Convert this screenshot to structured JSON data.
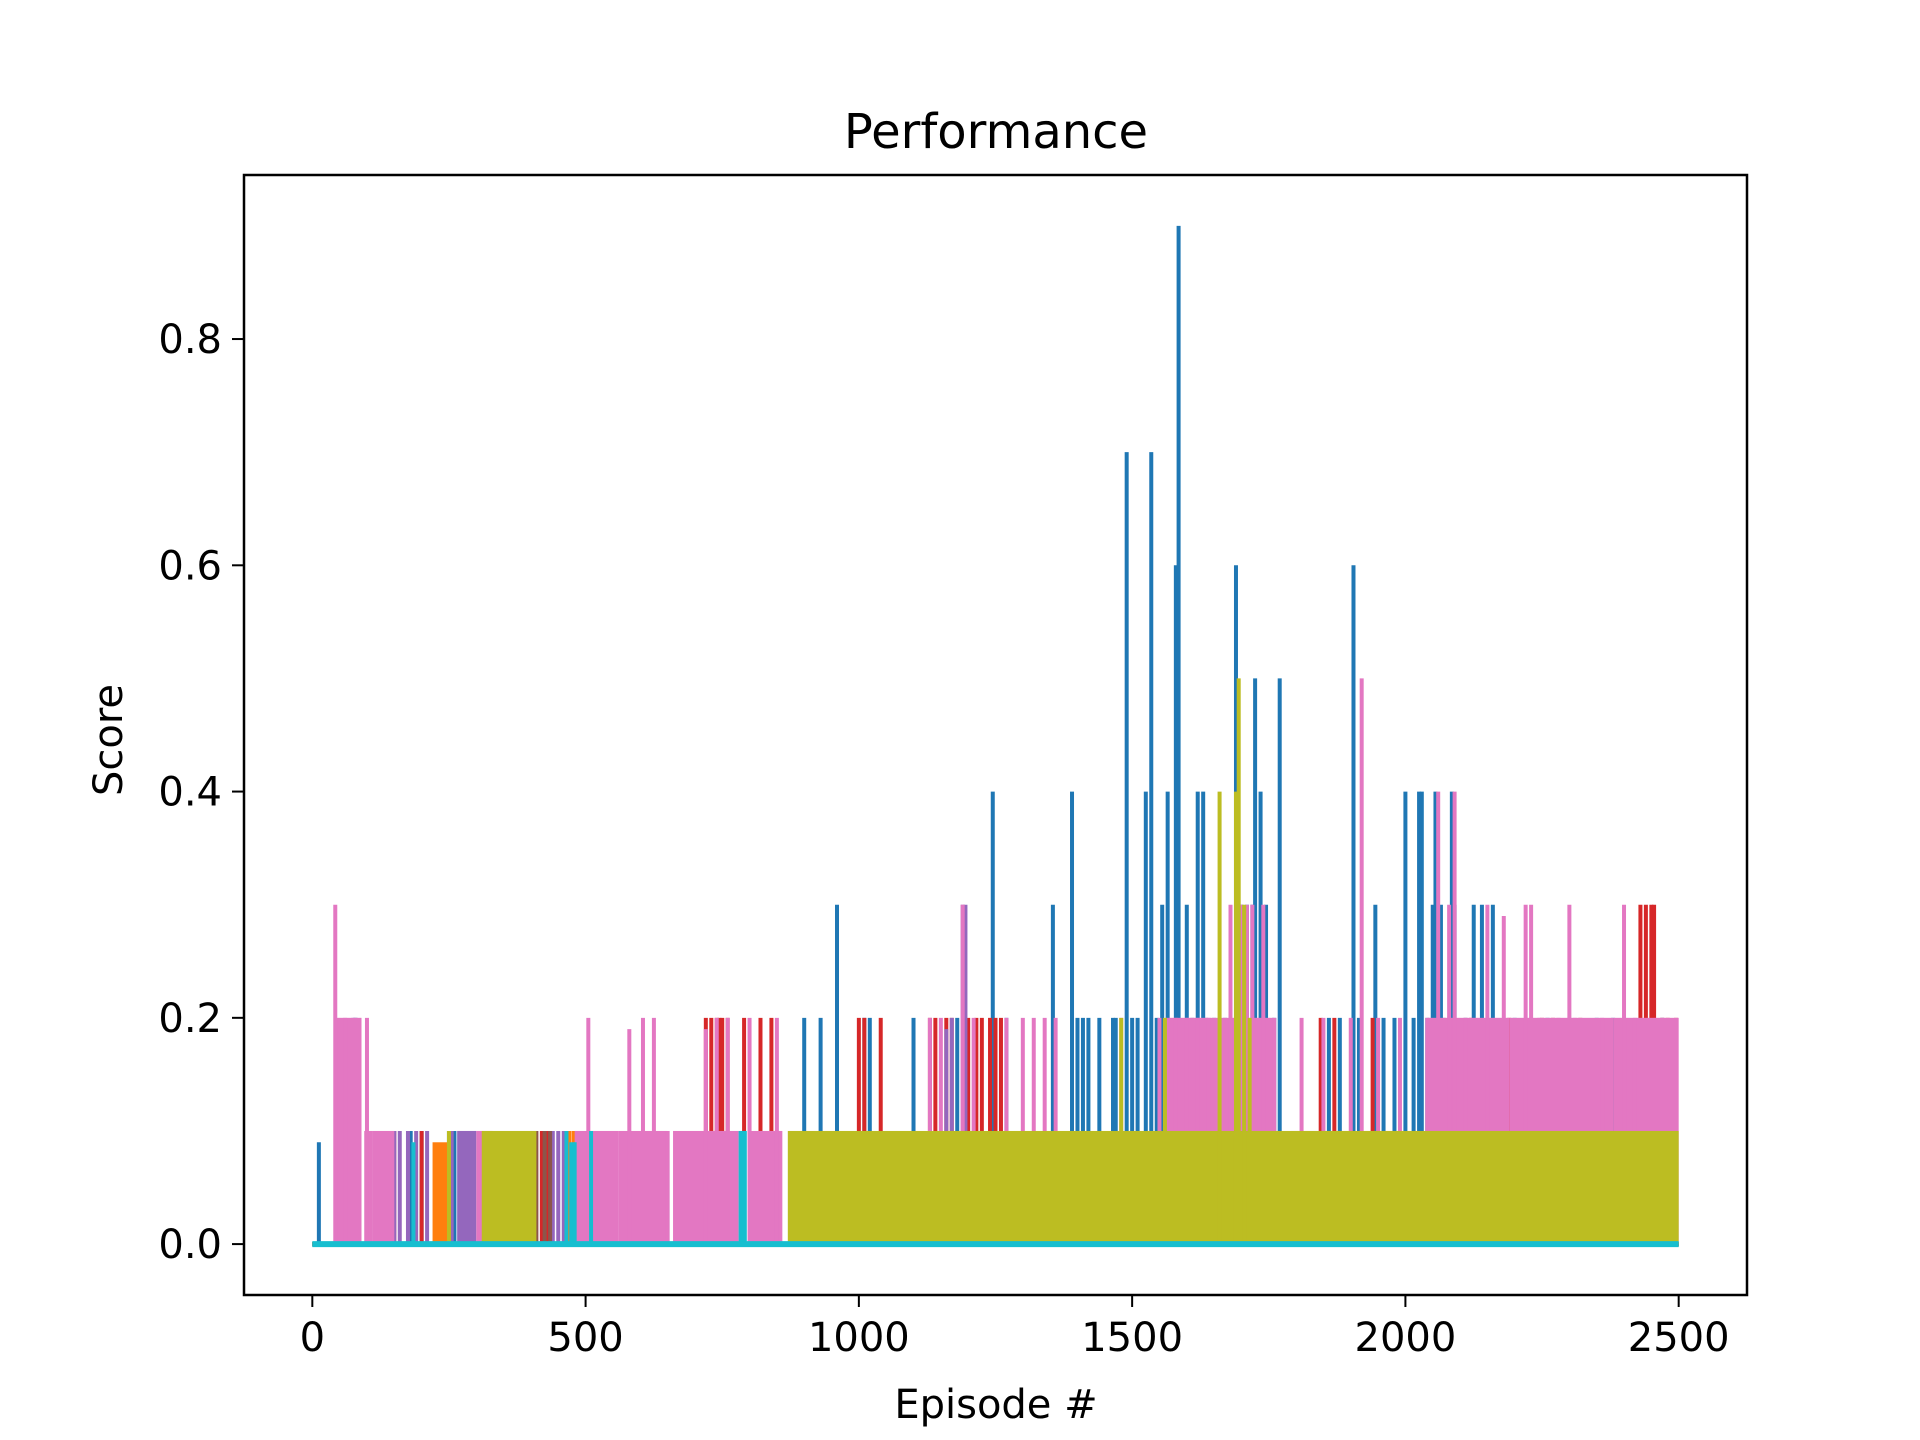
{
  "chart_data": {
    "type": "line",
    "title": "Performance",
    "xlabel": "Episode #",
    "ylabel": "Score",
    "xlim": [
      -125,
      2625
    ],
    "ylim": [
      -0.045,
      0.945
    ],
    "xticks": [
      0,
      500,
      1000,
      1500,
      2000,
      2500
    ],
    "xtick_labels": [
      "0",
      "500",
      "1000",
      "1500",
      "2000",
      "2500"
    ],
    "yticks": [
      0.0,
      0.2,
      0.4,
      0.6,
      0.8
    ],
    "ytick_labels": [
      "0.0",
      "0.2",
      "0.4",
      "0.6",
      "0.8"
    ],
    "grid": false,
    "legend": "none",
    "episodes": 2500,
    "series": [
      {
        "color": "#1f77b4",
        "baseline": 0.0,
        "bands": [],
        "spikes": [
          [
            12,
            0.09
          ],
          [
            60,
            0.1
          ],
          [
            72,
            0.1
          ],
          [
            75,
            0.1
          ],
          [
            78,
            0.2
          ],
          [
            180,
            0.1
          ],
          [
            200,
            0.1
          ],
          [
            250,
            0.1
          ],
          [
            260,
            0.1
          ],
          [
            285,
            0.1
          ],
          [
            900,
            0.2
          ],
          [
            960,
            0.3
          ],
          [
            930,
            0.2
          ],
          [
            1010,
            0.2
          ],
          [
            1020,
            0.2
          ],
          [
            1100,
            0.2
          ],
          [
            1180,
            0.2
          ],
          [
            1245,
            0.4
          ],
          [
            1270,
            0.2
          ],
          [
            1355,
            0.3
          ],
          [
            1390,
            0.4
          ],
          [
            1400,
            0.2
          ],
          [
            1410,
            0.2
          ],
          [
            1420,
            0.2
          ],
          [
            1440,
            0.2
          ],
          [
            1465,
            0.2
          ],
          [
            1470,
            0.2
          ],
          [
            1490,
            0.7
          ],
          [
            1500,
            0.2
          ],
          [
            1510,
            0.2
          ],
          [
            1525,
            0.4
          ],
          [
            1535,
            0.7
          ],
          [
            1545,
            0.2
          ],
          [
            1555,
            0.3
          ],
          [
            1565,
            0.4
          ],
          [
            1580,
            0.6
          ],
          [
            1585,
            0.9
          ],
          [
            1600,
            0.3
          ],
          [
            1610,
            0.2
          ],
          [
            1620,
            0.4
          ],
          [
            1630,
            0.4
          ],
          [
            1635,
            0.2
          ],
          [
            1650,
            0.2
          ],
          [
            1670,
            0.2
          ],
          [
            1690,
            0.6
          ],
          [
            1700,
            0.3
          ],
          [
            1710,
            0.3
          ],
          [
            1720,
            0.3
          ],
          [
            1725,
            0.5
          ],
          [
            1735,
            0.4
          ],
          [
            1745,
            0.3
          ],
          [
            1760,
            0.2
          ],
          [
            1770,
            0.5
          ],
          [
            1860,
            0.2
          ],
          [
            1880,
            0.2
          ],
          [
            1905,
            0.6
          ],
          [
            1915,
            0.2
          ],
          [
            1945,
            0.3
          ],
          [
            1960,
            0.2
          ],
          [
            1980,
            0.2
          ],
          [
            2000,
            0.4
          ],
          [
            2015,
            0.2
          ],
          [
            2025,
            0.4
          ],
          [
            2030,
            0.4
          ],
          [
            2040,
            0.2
          ],
          [
            2050,
            0.3
          ],
          [
            2055,
            0.4
          ],
          [
            2065,
            0.3
          ],
          [
            2070,
            0.2
          ],
          [
            2085,
            0.4
          ],
          [
            2090,
            0.3
          ],
          [
            2110,
            0.2
          ],
          [
            2125,
            0.3
          ],
          [
            2140,
            0.3
          ],
          [
            2160,
            0.3
          ],
          [
            2200,
            0.2
          ],
          [
            2230,
            0.2
          ],
          [
            2260,
            0.2
          ],
          [
            2300,
            0.2
          ],
          [
            2350,
            0.2
          ],
          [
            2380,
            0.2
          ],
          [
            2400,
            0.2
          ],
          [
            2430,
            0.2
          ],
          [
            2470,
            0.2
          ]
        ]
      },
      {
        "color": "#ff7f0e",
        "baseline": 0.0,
        "bands": [
          [
            220,
            250,
            0.09
          ]
        ],
        "spikes": [
          [
            470,
            0.1
          ],
          [
            478,
            0.1
          ],
          [
            482,
            0.1
          ],
          [
            540,
            0.1
          ]
        ]
      },
      {
        "color": "#2ca02c",
        "baseline": 0.0,
        "bands": [],
        "spikes": []
      },
      {
        "color": "#d62728",
        "baseline": 0.0,
        "bands": [],
        "spikes": [
          [
            150,
            0.1
          ],
          [
            200,
            0.1
          ],
          [
            420,
            0.1
          ],
          [
            430,
            0.1
          ],
          [
            720,
            0.2
          ],
          [
            730,
            0.2
          ],
          [
            740,
            0.2
          ],
          [
            745,
            0.2
          ],
          [
            750,
            0.2
          ],
          [
            760,
            0.2
          ],
          [
            790,
            0.2
          ],
          [
            820,
            0.2
          ],
          [
            840,
            0.2
          ],
          [
            1000,
            0.2
          ],
          [
            1010,
            0.2
          ],
          [
            1040,
            0.2
          ],
          [
            1130,
            0.2
          ],
          [
            1140,
            0.2
          ],
          [
            1160,
            0.2
          ],
          [
            1170,
            0.2
          ],
          [
            1200,
            0.2
          ],
          [
            1215,
            0.2
          ],
          [
            1225,
            0.2
          ],
          [
            1240,
            0.2
          ],
          [
            1250,
            0.2
          ],
          [
            1260,
            0.2
          ],
          [
            1845,
            0.2
          ],
          [
            1870,
            0.2
          ],
          [
            1940,
            0.2
          ],
          [
            2080,
            0.2
          ],
          [
            2120,
            0.2
          ],
          [
            2190,
            0.2
          ],
          [
            2250,
            0.2
          ],
          [
            2270,
            0.2
          ],
          [
            2320,
            0.2
          ],
          [
            2430,
            0.3
          ],
          [
            2440,
            0.3
          ],
          [
            2450,
            0.3
          ],
          [
            2455,
            0.3
          ],
          [
            2470,
            0.2
          ],
          [
            2480,
            0.2
          ],
          [
            2495,
            0.2
          ]
        ]
      },
      {
        "color": "#9467bd",
        "baseline": 0.0,
        "bands": [
          [
            265,
            300,
            0.1
          ]
        ],
        "spikes": [
          [
            75,
            0.2
          ],
          [
            80,
            0.2
          ],
          [
            150,
            0.1
          ],
          [
            160,
            0.1
          ],
          [
            175,
            0.1
          ],
          [
            190,
            0.1
          ],
          [
            210,
            0.1
          ],
          [
            255,
            0.1
          ],
          [
            440,
            0.1
          ],
          [
            450,
            0.1
          ],
          [
            460,
            0.1
          ],
          [
            495,
            0.1
          ],
          [
            505,
            0.1
          ],
          [
            515,
            0.1
          ],
          [
            650,
            0.1
          ],
          [
            680,
            0.1
          ],
          [
            1160,
            0.19
          ],
          [
            1170,
            0.2
          ],
          [
            1190,
            0.3
          ],
          [
            1195,
            0.3
          ]
        ]
      },
      {
        "color": "#8c564b",
        "baseline": 0.0,
        "bands": [],
        "spikes": [
          [
            410,
            0.1
          ],
          [
            425,
            0.1
          ],
          [
            435,
            0.1
          ]
        ]
      },
      {
        "color": "#e377c2",
        "baseline": 0.0,
        "bands": [
          [
            40,
            90,
            0.2
          ],
          [
            95,
            110,
            0.1
          ],
          [
            110,
            150,
            0.1
          ],
          [
            300,
            330,
            0.1
          ],
          [
            480,
            560,
            0.1
          ],
          [
            560,
            650,
            0.1
          ],
          [
            660,
            720,
            0.1
          ],
          [
            720,
            780,
            0.1
          ],
          [
            800,
            860,
            0.1
          ],
          [
            1560,
            1760,
            0.2
          ],
          [
            1790,
            1900,
            0.1
          ],
          [
            1920,
            2000,
            0.1
          ],
          [
            2040,
            2190,
            0.2
          ],
          [
            2190,
            2380,
            0.2
          ],
          [
            2380,
            2500,
            0.2
          ]
        ],
        "spikes": [
          [
            42,
            0.3
          ],
          [
            60,
            0.2
          ],
          [
            100,
            0.2
          ],
          [
            505,
            0.2
          ],
          [
            580,
            0.19
          ],
          [
            605,
            0.2
          ],
          [
            625,
            0.2
          ],
          [
            650,
            0.1
          ],
          [
            720,
            0.19
          ],
          [
            740,
            0.2
          ],
          [
            760,
            0.2
          ],
          [
            800,
            0.2
          ],
          [
            850,
            0.2
          ],
          [
            1130,
            0.2
          ],
          [
            1150,
            0.2
          ],
          [
            1190,
            0.3
          ],
          [
            1210,
            0.2
          ],
          [
            1270,
            0.2
          ],
          [
            1300,
            0.2
          ],
          [
            1320,
            0.2
          ],
          [
            1340,
            0.2
          ],
          [
            1360,
            0.2
          ],
          [
            1480,
            0.2
          ],
          [
            1550,
            0.2
          ],
          [
            1580,
            0.2
          ],
          [
            1600,
            0.2
          ],
          [
            1620,
            0.2
          ],
          [
            1640,
            0.2
          ],
          [
            1680,
            0.3
          ],
          [
            1700,
            0.3
          ],
          [
            1710,
            0.3
          ],
          [
            1720,
            0.3
          ],
          [
            1740,
            0.3
          ],
          [
            1760,
            0.2
          ],
          [
            1810,
            0.2
          ],
          [
            1850,
            0.2
          ],
          [
            1900,
            0.2
          ],
          [
            1920,
            0.5
          ],
          [
            1950,
            0.2
          ],
          [
            1990,
            0.2
          ],
          [
            2040,
            0.2
          ],
          [
            2060,
            0.4
          ],
          [
            2080,
            0.3
          ],
          [
            2090,
            0.4
          ],
          [
            2110,
            0.2
          ],
          [
            2150,
            0.3
          ],
          [
            2180,
            0.29
          ],
          [
            2220,
            0.3
          ],
          [
            2230,
            0.3
          ],
          [
            2245,
            0.2
          ],
          [
            2280,
            0.2
          ],
          [
            2300,
            0.3
          ],
          [
            2310,
            0.2
          ],
          [
            2360,
            0.2
          ],
          [
            2400,
            0.3
          ],
          [
            2420,
            0.2
          ]
        ]
      },
      {
        "color": "#7f7f7f",
        "baseline": 0.0,
        "bands": [],
        "spikes": []
      },
      {
        "color": "#bcbd22",
        "baseline": 0.0,
        "bands": [
          [
            310,
            410,
            0.1
          ],
          [
            870,
            2500,
            0.1
          ]
        ],
        "spikes": [
          [
            250,
            0.1
          ],
          [
            1690,
            0.4
          ],
          [
            1695,
            0.5
          ],
          [
            1705,
            0.3
          ],
          [
            1660,
            0.4
          ],
          [
            1480,
            0.2
          ],
          [
            1560,
            0.2
          ],
          [
            1715,
            0.2
          ]
        ]
      },
      {
        "color": "#17becf",
        "baseline": 0.0,
        "bands": [
          [
            470,
            480,
            0.09
          ],
          [
            780,
            795,
            0.1
          ]
        ],
        "spikes": [
          [
            185,
            0.09
          ],
          [
            465,
            0.1
          ],
          [
            480,
            0.09
          ],
          [
            510,
            0.1
          ]
        ]
      }
    ]
  }
}
